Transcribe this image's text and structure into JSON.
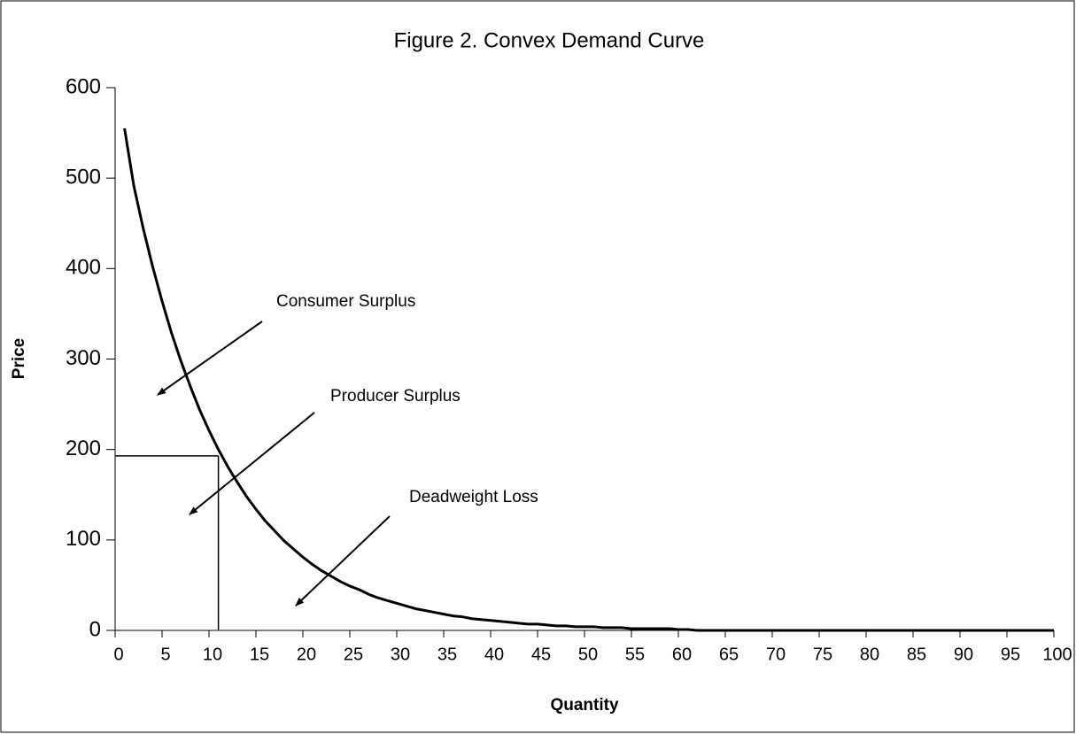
{
  "chart_data": {
    "type": "line",
    "title": "Figure 2. Convex Demand Curve",
    "x_label": "Quantity",
    "y_label": "Price",
    "x": [
      1,
      2,
      3,
      4,
      5,
      6,
      7,
      8,
      9,
      10,
      11,
      12,
      13,
      14,
      15,
      16,
      17,
      18,
      19,
      20,
      21,
      22,
      23,
      24,
      25,
      26,
      27,
      28,
      29,
      30,
      31,
      32,
      33,
      34,
      35,
      36,
      37,
      38,
      39,
      40,
      41,
      42,
      43,
      44,
      45,
      46,
      47,
      48,
      49,
      50,
      51,
      52,
      53,
      54,
      55,
      56,
      57,
      58,
      59,
      60,
      61,
      62,
      63,
      64,
      65,
      66,
      67,
      68,
      69,
      70,
      71,
      72,
      73,
      74,
      75,
      76,
      77,
      78,
      79,
      80,
      81,
      82,
      83,
      84,
      85,
      86,
      87,
      88,
      89,
      90,
      91,
      92,
      93,
      94,
      95,
      96,
      97,
      98,
      99,
      100
    ],
    "series": [
      {
        "name": "Demand",
        "color": "#000000",
        "values": [
          555,
          491,
          444,
          402,
          364,
          329,
          298,
          270,
          244,
          221,
          200,
          181,
          164,
          148,
          134,
          121,
          110,
          99,
          90,
          81,
          73,
          66,
          60,
          54,
          49,
          45,
          40,
          36,
          33,
          30,
          27,
          24,
          22,
          20,
          18,
          16,
          15,
          13,
          12,
          11,
          10,
          9,
          8,
          7,
          7,
          6,
          5,
          5,
          4,
          4,
          4,
          3,
          3,
          3,
          2,
          2,
          2,
          2,
          2,
          1,
          1,
          0,
          0,
          0,
          0,
          0,
          0,
          0,
          0,
          0,
          0,
          0,
          0,
          0,
          0,
          0,
          0,
          0,
          0,
          0,
          0,
          0,
          0,
          0,
          0,
          0,
          0,
          0,
          0,
          0,
          0,
          0,
          0,
          0,
          0,
          0,
          0,
          0,
          0,
          0
        ]
      }
    ],
    "equilibrium": {
      "x": 11,
      "y": 193
    },
    "annotations": [
      "Consumer Surplus",
      "Producer Surplus",
      "Deadweight Loss"
    ],
    "xlim": [
      0,
      100
    ],
    "xticks": [
      0,
      5,
      10,
      15,
      20,
      25,
      30,
      35,
      40,
      45,
      50,
      55,
      60,
      65,
      70,
      75,
      80,
      85,
      90,
      95,
      100
    ],
    "ylim": [
      0,
      600
    ],
    "yticks": [
      0,
      100,
      200,
      300,
      400,
      500,
      600
    ]
  }
}
